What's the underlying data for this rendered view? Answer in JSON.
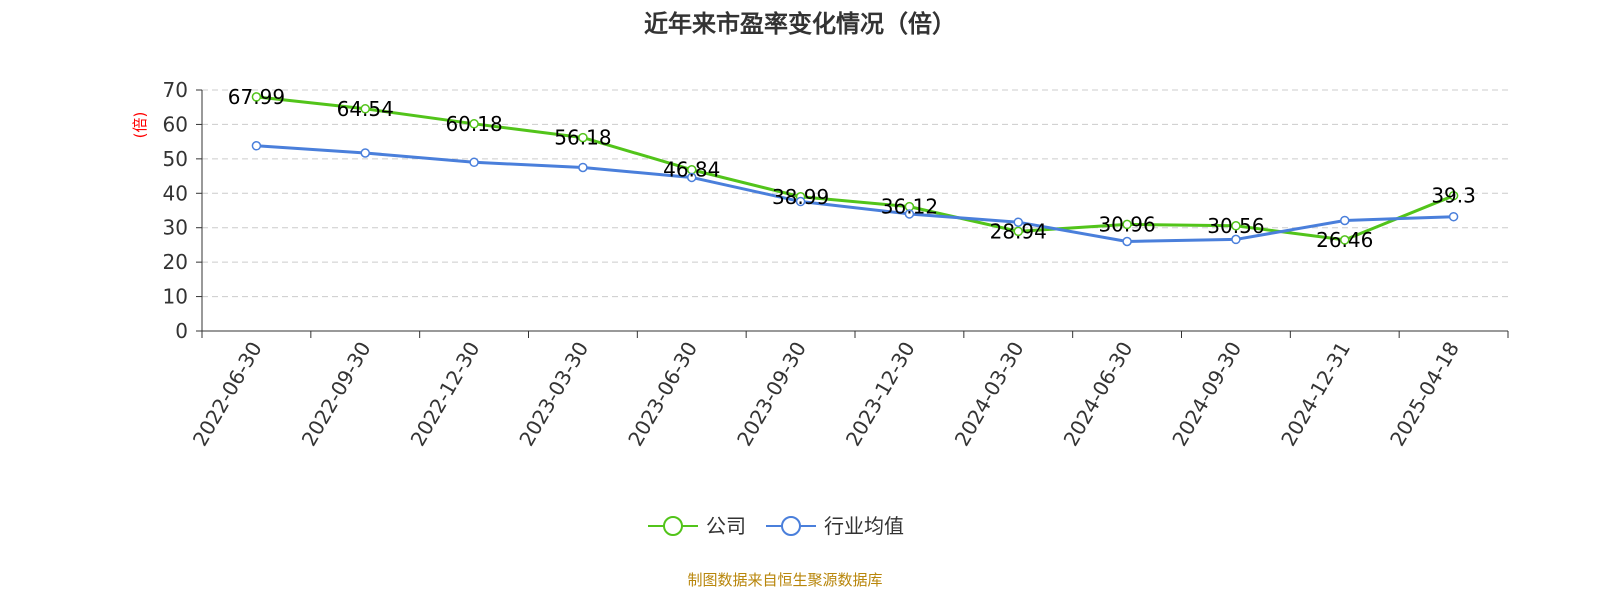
{
  "chart_data": {
    "type": "line",
    "title": "近年来市盈率变化情况（倍）",
    "ylabel": "(倍)",
    "ylim": [
      0,
      70
    ],
    "yticks": [
      0,
      10,
      20,
      30,
      40,
      50,
      60,
      70
    ],
    "grid": true,
    "legend_position": "bottom-center",
    "categories": [
      "2022-06-30",
      "2022-09-30",
      "2022-12-30",
      "2023-03-30",
      "2023-06-30",
      "2023-09-30",
      "2023-12-30",
      "2024-03-30",
      "2024-06-30",
      "2024-09-30",
      "2024-12-31",
      "2025-04-18"
    ],
    "series": [
      {
        "name": "公司",
        "color": "#52c41a",
        "values": [
          67.99,
          64.54,
          60.18,
          56.18,
          46.84,
          38.99,
          36.12,
          28.94,
          30.96,
          30.56,
          26.46,
          39.3
        ],
        "labels": [
          "67.99",
          "64.54",
          "60.18",
          "56.18",
          "46.84",
          "38.99",
          "36.12",
          "28.94",
          "30.96",
          "30.56",
          "26.46",
          "39.3"
        ]
      },
      {
        "name": "行业均值",
        "color": "#4a7fdb",
        "values": [
          53.8,
          51.7,
          49.0,
          47.5,
          44.6,
          37.6,
          34.0,
          31.6,
          26.0,
          26.6,
          32.1,
          33.2
        ]
      }
    ]
  },
  "colors": {
    "ylabel": "#ff0000",
    "source": "#b8860b",
    "axis": "#333333",
    "grid": "#cccccc"
  },
  "source_text": "制图数据来自恒生聚源数据库"
}
